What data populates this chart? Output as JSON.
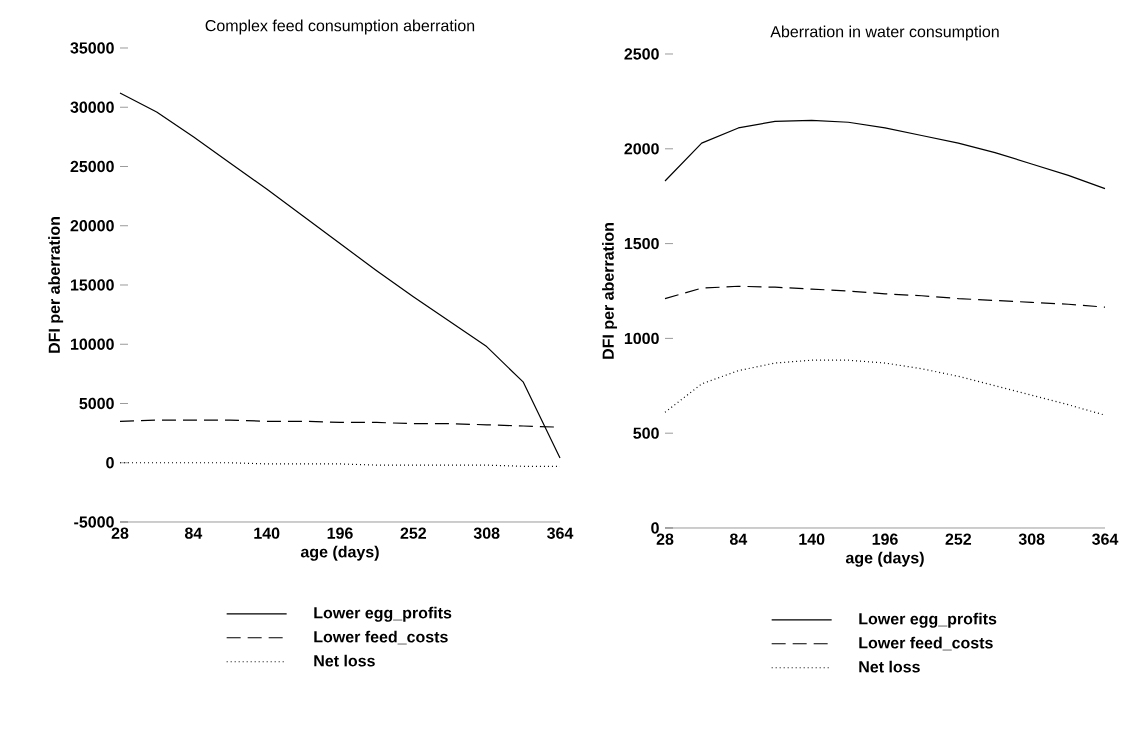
{
  "chart_data": [
    {
      "type": "line",
      "title": "Complex feed consumption aberration",
      "xlabel": "age (days)",
      "ylabel": "DFI per aberration",
      "x": [
        28,
        56,
        84,
        112,
        140,
        168,
        196,
        224,
        252,
        280,
        308,
        336,
        364
      ],
      "xlim": [
        28,
        364
      ],
      "ylim": [
        -5000,
        35000
      ],
      "xticks": [
        28,
        84,
        140,
        196,
        252,
        308,
        364
      ],
      "yticks": [
        -5000,
        0,
        5000,
        10000,
        15000,
        20000,
        25000,
        30000,
        35000
      ],
      "grid": false,
      "legend": "bottom",
      "series": [
        {
          "name": "Lower egg_profits",
          "color": "#000000",
          "line_style": "solid",
          "values": [
            31200,
            29600,
            27500,
            25300,
            23100,
            20800,
            18500,
            16200,
            14000,
            11900,
            9800,
            6800,
            400
          ]
        },
        {
          "name": "Lower feed_costs",
          "color": "#000000",
          "line_style": "dashed",
          "values": [
            3500,
            3600,
            3600,
            3600,
            3500,
            3500,
            3400,
            3400,
            3300,
            3300,
            3200,
            3100,
            3000
          ]
        },
        {
          "name": "Net loss",
          "color": "#000000",
          "line_style": "dotted",
          "values": [
            0,
            0,
            0,
            0,
            -100,
            -100,
            -100,
            -200,
            -200,
            -200,
            -200,
            -300,
            -300
          ]
        }
      ]
    },
    {
      "type": "line",
      "title": "Aberration in water consumption",
      "xlabel": "age (days)",
      "ylabel": "DFI per aberration",
      "x": [
        28,
        56,
        84,
        112,
        140,
        168,
        196,
        224,
        252,
        280,
        308,
        336,
        364
      ],
      "xlim": [
        28,
        364
      ],
      "ylim": [
        0,
        2500
      ],
      "xticks": [
        28,
        84,
        140,
        196,
        252,
        308,
        364
      ],
      "yticks": [
        0,
        500,
        1000,
        1500,
        2000,
        2500
      ],
      "grid": false,
      "legend": "bottom",
      "series": [
        {
          "name": "Lower egg_profits",
          "color": "#000000",
          "line_style": "solid",
          "values": [
            1830,
            2030,
            2110,
            2145,
            2150,
            2140,
            2110,
            2070,
            2030,
            1980,
            1920,
            1860,
            1790
          ]
        },
        {
          "name": "Lower feed_costs",
          "color": "#000000",
          "line_style": "dashed",
          "values": [
            1210,
            1265,
            1275,
            1270,
            1260,
            1250,
            1235,
            1225,
            1210,
            1200,
            1190,
            1180,
            1165
          ]
        },
        {
          "name": "Net loss",
          "color": "#000000",
          "line_style": "dotted",
          "values": [
            610,
            760,
            830,
            870,
            885,
            885,
            870,
            840,
            800,
            750,
            700,
            650,
            595
          ]
        }
      ]
    }
  ]
}
